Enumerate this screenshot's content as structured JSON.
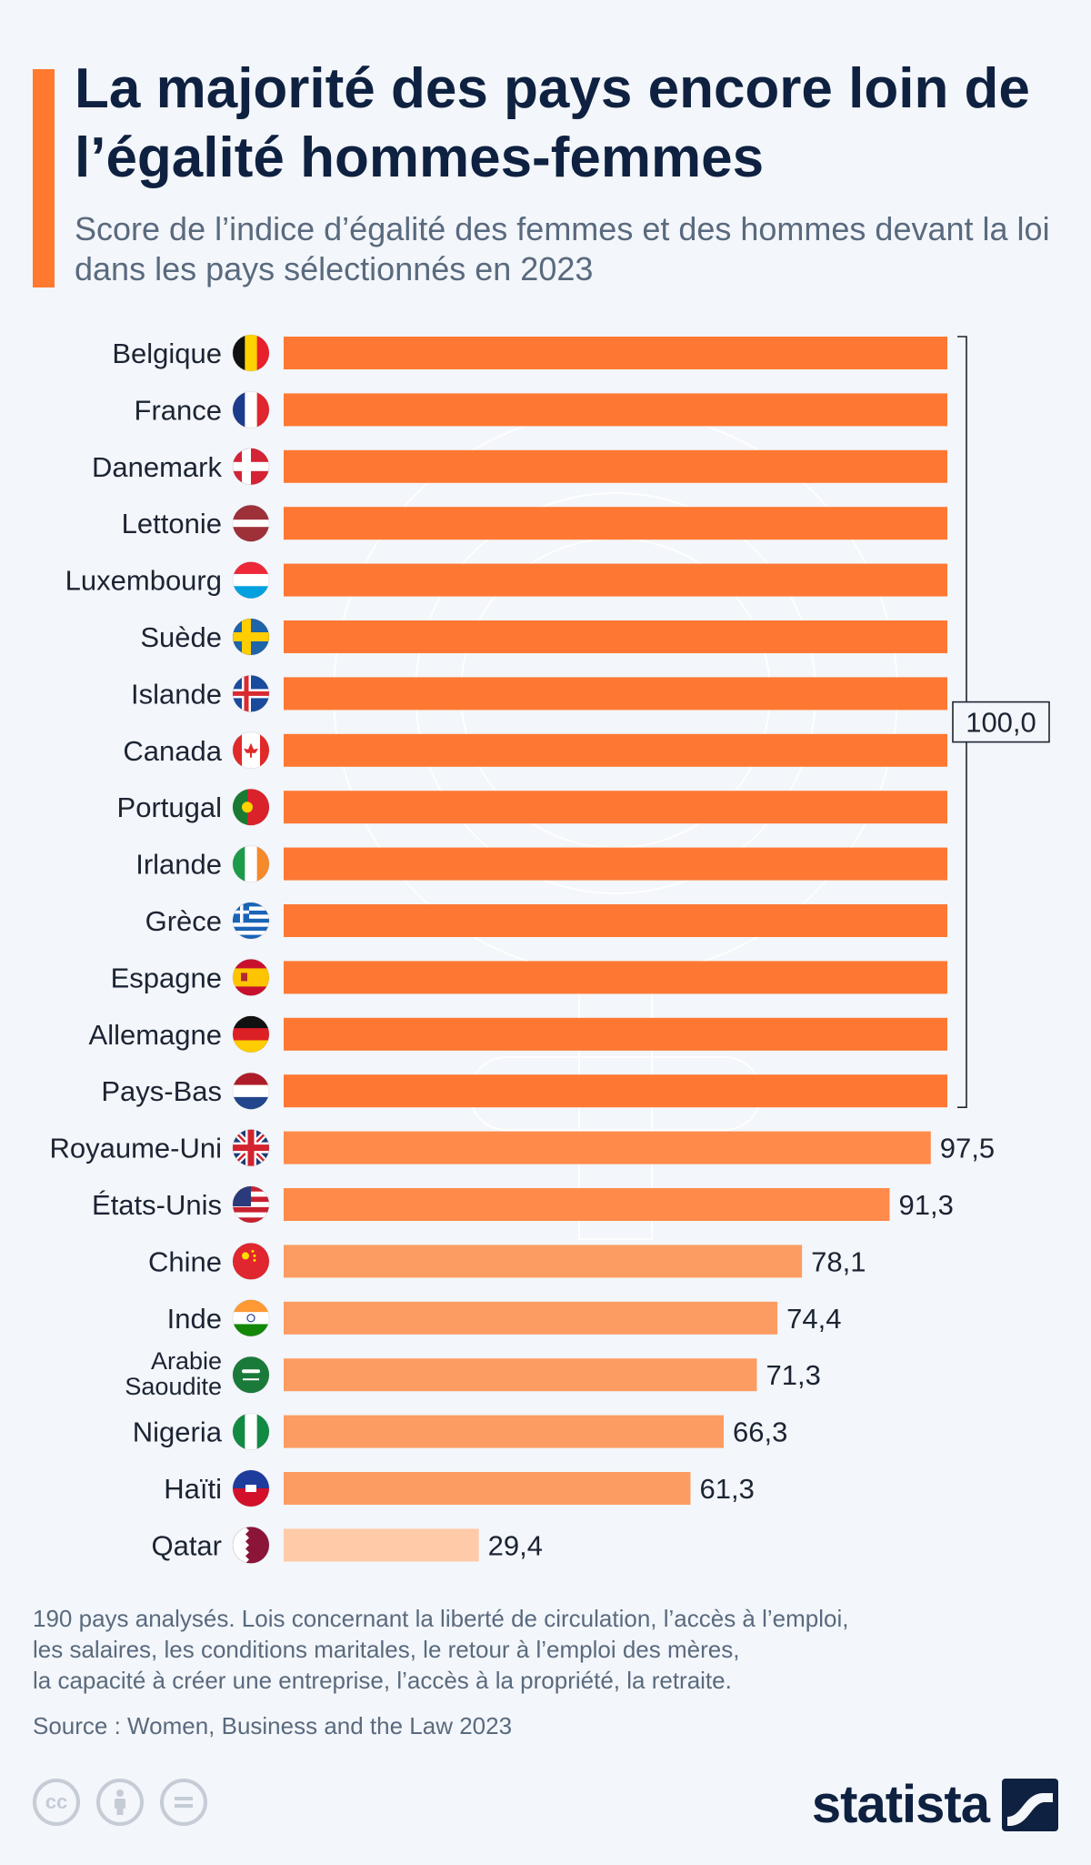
{
  "header": {
    "title": "La majorité des pays encore loin de l’égalité hommes-femmes",
    "subtitle": "Score de l’indice d’égalité des femmes et des hommes devant la loi dans les pays sélectionnés en 2023"
  },
  "chart_data": {
    "type": "bar",
    "orientation": "horizontal",
    "categories": [
      "Belgique",
      "France",
      "Danemark",
      "Lettonie",
      "Luxembourg",
      "Suède",
      "Islande",
      "Canada",
      "Portugal",
      "Irlande",
      "Grèce",
      "Espagne",
      "Allemagne",
      "Pays-Bas",
      "Royaume-Uni",
      "États-Unis",
      "Chine",
      "Inde",
      "Arabie Saoudite",
      "Nigeria",
      "Haïti",
      "Qatar"
    ],
    "values": [
      100,
      100,
      100,
      100,
      100,
      100,
      100,
      100,
      100,
      100,
      100,
      100,
      100,
      100,
      97.5,
      91.3,
      78.1,
      74.4,
      71.3,
      66.3,
      61.3,
      29.4
    ],
    "data_labels": [
      "",
      "",
      "",
      "",
      "",
      "",
      "",
      "",
      "",
      "",
      "",
      "",
      "",
      "",
      "97,5",
      "91,3",
      "78,1",
      "74,4",
      "71,3",
      "66,3",
      "61,3",
      "29,4"
    ],
    "group_label": "100,0",
    "xlim": [
      0,
      100
    ],
    "colors": {
      "full": "#ff6d22",
      "high": "#ff8a4a",
      "mid": "#fd9c62",
      "low": "#ffcaa8"
    }
  },
  "footer": {
    "note_lines": [
      "190 pays analysés. Lois concernant la liberté de circulation, l’accès à l’emploi,",
      "les salaires, les conditions maritales, le retour à l’emploi des mères,",
      "la capacité à créer une entreprise, l’accès à la propriété, la retraite."
    ],
    "source": "Source : Women, Business and the Law 2023",
    "license_icons": [
      "cc-icon",
      "attribution-icon",
      "no-derivatives-icon"
    ],
    "brand": "statista"
  }
}
